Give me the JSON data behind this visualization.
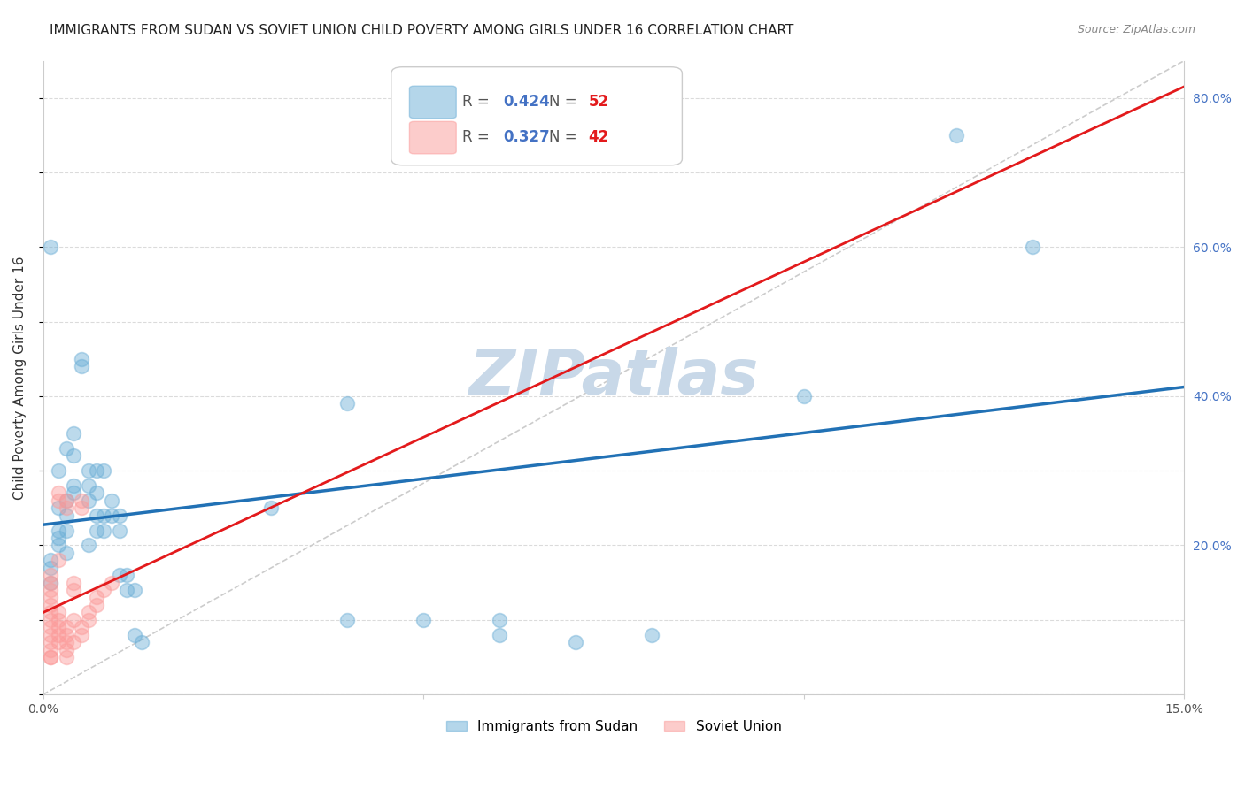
{
  "title": "IMMIGRANTS FROM SUDAN VS SOVIET UNION CHILD POVERTY AMONG GIRLS UNDER 16 CORRELATION CHART",
  "source": "Source: ZipAtlas.com",
  "ylabel": "Child Poverty Among Girls Under 16",
  "xlim": [
    0.0,
    0.15
  ],
  "ylim": [
    0.0,
    0.85
  ],
  "sudan_R": 0.424,
  "sudan_N": 52,
  "soviet_R": 0.327,
  "soviet_N": 42,
  "sudan_color": "#6baed6",
  "soviet_color": "#fb9a99",
  "sudan_line_color": "#2171b5",
  "soviet_line_color": "#e31a1c",
  "watermark": "ZIPatlas",
  "watermark_color": "#c8d8e8",
  "legend_label_sudan": "Immigrants from Sudan",
  "legend_label_soviet": "Soviet Union",
  "sudan_dots": [
    [
      0.001,
      0.18
    ],
    [
      0.002,
      0.22
    ],
    [
      0.001,
      0.15
    ],
    [
      0.003,
      0.26
    ],
    [
      0.002,
      0.3
    ],
    [
      0.003,
      0.33
    ],
    [
      0.004,
      0.32
    ],
    [
      0.003,
      0.19
    ],
    [
      0.002,
      0.2
    ],
    [
      0.004,
      0.35
    ],
    [
      0.003,
      0.24
    ],
    [
      0.002,
      0.21
    ],
    [
      0.001,
      0.17
    ],
    [
      0.004,
      0.28
    ],
    [
      0.002,
      0.25
    ],
    [
      0.003,
      0.22
    ],
    [
      0.001,
      0.6
    ],
    [
      0.004,
      0.27
    ],
    [
      0.005,
      0.45
    ],
    [
      0.005,
      0.44
    ],
    [
      0.006,
      0.28
    ],
    [
      0.006,
      0.26
    ],
    [
      0.007,
      0.24
    ],
    [
      0.007,
      0.27
    ],
    [
      0.007,
      0.22
    ],
    [
      0.006,
      0.2
    ],
    [
      0.007,
      0.3
    ],
    [
      0.006,
      0.3
    ],
    [
      0.008,
      0.24
    ],
    [
      0.008,
      0.22
    ],
    [
      0.008,
      0.3
    ],
    [
      0.009,
      0.26
    ],
    [
      0.009,
      0.24
    ],
    [
      0.01,
      0.24
    ],
    [
      0.01,
      0.22
    ],
    [
      0.01,
      0.16
    ],
    [
      0.011,
      0.16
    ],
    [
      0.011,
      0.14
    ],
    [
      0.012,
      0.14
    ],
    [
      0.012,
      0.08
    ],
    [
      0.013,
      0.07
    ],
    [
      0.03,
      0.25
    ],
    [
      0.04,
      0.1
    ],
    [
      0.04,
      0.39
    ],
    [
      0.05,
      0.1
    ],
    [
      0.06,
      0.1
    ],
    [
      0.06,
      0.08
    ],
    [
      0.07,
      0.07
    ],
    [
      0.08,
      0.08
    ],
    [
      0.1,
      0.4
    ],
    [
      0.12,
      0.75
    ],
    [
      0.13,
      0.6
    ]
  ],
  "soviet_dots": [
    [
      0.001,
      0.05
    ],
    [
      0.001,
      0.07
    ],
    [
      0.001,
      0.08
    ],
    [
      0.001,
      0.09
    ],
    [
      0.001,
      0.1
    ],
    [
      0.001,
      0.11
    ],
    [
      0.001,
      0.12
    ],
    [
      0.001,
      0.13
    ],
    [
      0.001,
      0.14
    ],
    [
      0.001,
      0.15
    ],
    [
      0.001,
      0.16
    ],
    [
      0.001,
      0.05
    ],
    [
      0.001,
      0.06
    ],
    [
      0.002,
      0.07
    ],
    [
      0.002,
      0.08
    ],
    [
      0.002,
      0.09
    ],
    [
      0.002,
      0.1
    ],
    [
      0.002,
      0.11
    ],
    [
      0.002,
      0.18
    ],
    [
      0.002,
      0.26
    ],
    [
      0.002,
      0.27
    ],
    [
      0.003,
      0.25
    ],
    [
      0.003,
      0.26
    ],
    [
      0.003,
      0.05
    ],
    [
      0.003,
      0.06
    ],
    [
      0.003,
      0.07
    ],
    [
      0.003,
      0.08
    ],
    [
      0.003,
      0.09
    ],
    [
      0.004,
      0.1
    ],
    [
      0.004,
      0.14
    ],
    [
      0.004,
      0.15
    ],
    [
      0.004,
      0.07
    ],
    [
      0.005,
      0.08
    ],
    [
      0.005,
      0.09
    ],
    [
      0.005,
      0.25
    ],
    [
      0.005,
      0.26
    ],
    [
      0.006,
      0.1
    ],
    [
      0.006,
      0.11
    ],
    [
      0.007,
      0.12
    ],
    [
      0.007,
      0.13
    ],
    [
      0.008,
      0.14
    ],
    [
      0.009,
      0.15
    ]
  ],
  "grid_color": "#cccccc",
  "background_color": "#ffffff",
  "title_fontsize": 11,
  "axis_label_fontsize": 11,
  "tick_fontsize": 10,
  "right_tick_color": "#4472c4",
  "legend_R_color": "#4472c4",
  "legend_N_color": "#e31a1c"
}
